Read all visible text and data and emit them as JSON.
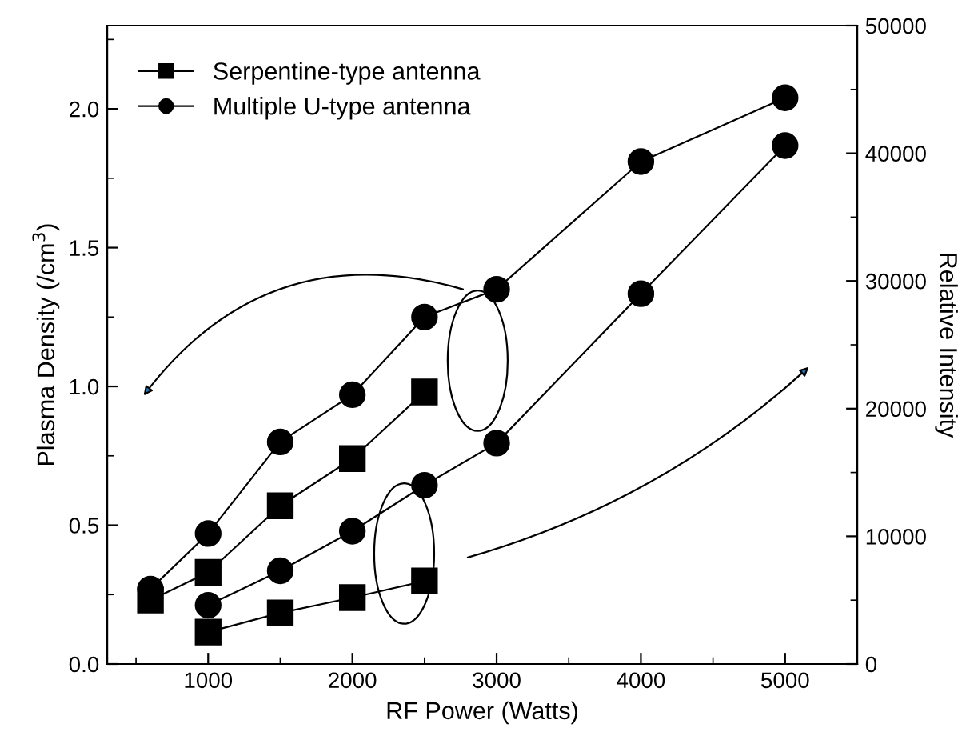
{
  "chart_data": {
    "type": "line",
    "xlabel": "RF Power (Watts)",
    "ylabel": "Plasma Density (/cm$^{3}$)",
    "y2label": "Relative Intensity",
    "xlim": [
      300,
      5500
    ],
    "xticks": [
      1000,
      2000,
      3000,
      4000,
      5000
    ],
    "ylim": [
      0,
      2.3
    ],
    "yticks": [
      {
        "value": 0,
        "label": "0.0"
      },
      {
        "value": 0.5,
        "label": "0.5"
      },
      {
        "value": 1,
        "label": "1.0"
      },
      {
        "value": 1.5,
        "label": "1.5"
      },
      {
        "value": 2,
        "label": "2.0"
      }
    ],
    "y2lim": [
      0,
      50000
    ],
    "y2ticks": [
      0,
      10000,
      20000,
      30000,
      40000,
      50000
    ],
    "legend": "top left",
    "grid": false,
    "series": [
      {
        "name": "Serpentine-type antenna",
        "color": "#000000",
        "marker": "square",
        "x": [
          600,
          1000,
          1500,
          2000,
          2500
        ],
        "values": [
          0.23,
          0.33,
          0.57,
          0.74,
          0.98
        ]
      },
      {
        "name": "Multiple U-type antenna",
        "color": "#000000",
        "marker": "circle",
        "x": [
          600,
          1000,
          1500,
          2000,
          2500,
          3000,
          4000,
          5000
        ],
        "values": [
          0.27,
          0.47,
          0.8,
          0.97,
          1.25,
          1.35,
          1.81,
          2.04
        ]
      },
      {
        "color": "#000000",
        "marker": "square",
        "axis": "y2",
        "x": [
          1000,
          1500,
          2000,
          2500
        ],
        "values": [
          2500,
          4000,
          5200,
          6500
        ]
      },
      {
        "color": "#000000",
        "marker": "circle",
        "axis": "y2",
        "x": [
          1000,
          1500,
          2000,
          2500,
          3000,
          4000,
          5000
        ],
        "values": [
          4600,
          7300,
          10400,
          14000,
          17300,
          29000,
          40600
        ]
      }
    ]
  }
}
